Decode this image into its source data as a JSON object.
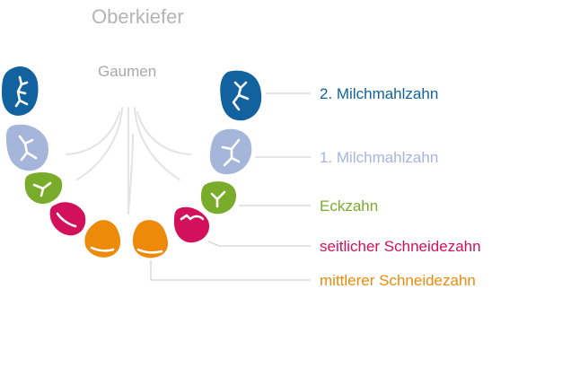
{
  "title": "Oberkiefer",
  "palate_label": "Gaumen",
  "colors": {
    "second_molar": "#11629e",
    "first_molar": "#a6b6da",
    "canine": "#7aac2c",
    "lateral_incisor": "#d2105c",
    "central_incisor": "#ed8a0a",
    "leader_line": "#c8c8c8",
    "palate_lines": "#e3e3e3"
  },
  "legend": [
    {
      "id": "m2",
      "label": "2. Milchmahlzahn",
      "color_key": "second_molar"
    },
    {
      "id": "m1",
      "label": "1. Milchmahlzahn",
      "color_key": "first_molar"
    },
    {
      "id": "can",
      "label": "Eckzahn",
      "color_key": "canine"
    },
    {
      "id": "lat",
      "label": "seitlicher Schneidezahn",
      "color_key": "lateral_incisor"
    },
    {
      "id": "cen",
      "label": "mittlerer Schneidezahn",
      "color_key": "central_incisor"
    }
  ]
}
